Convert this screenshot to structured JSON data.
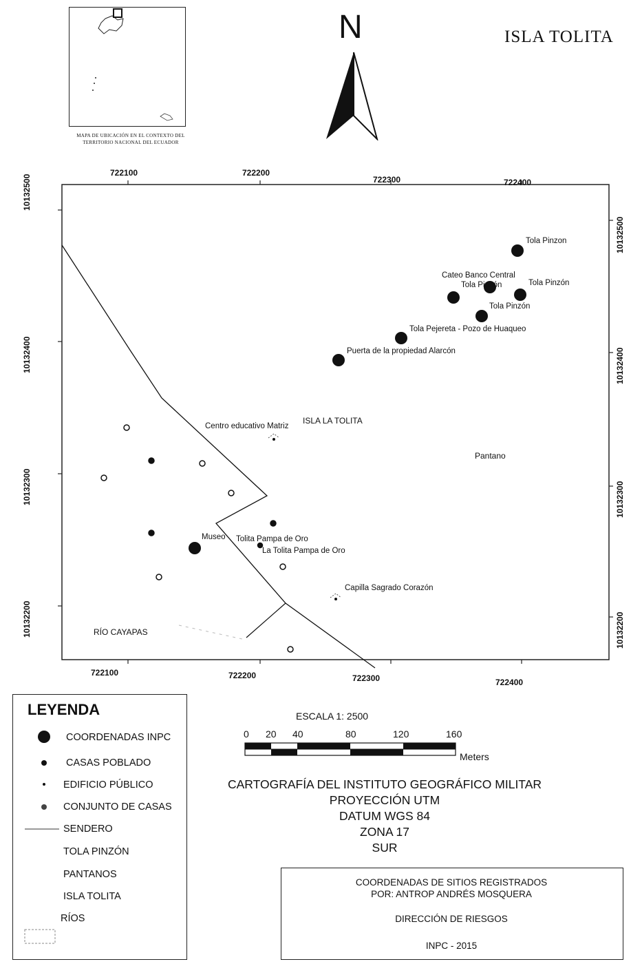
{
  "title": "ISLA TOLITA",
  "north_label": "N",
  "inset": {
    "caption_line1": "MAPA DE UBICACIÓN EN EL CONTEXTO DEL",
    "caption_line2": "TERRITORIO NACIONAL DEL ECUADOR"
  },
  "grid": {
    "easting_labels": [
      "722100",
      "722200",
      "722300",
      "722400"
    ],
    "northing_labels_left": [
      "10132500",
      "10132400",
      "10132300",
      "10132200"
    ],
    "northing_labels_right": [
      "10132500",
      "10132400",
      "10132300",
      "10132200"
    ]
  },
  "map_labels": {
    "isla": "ISLA LA TOLITA",
    "pantano": "Pantano",
    "rio": "RÍO CAYAPAS",
    "centro": "Centro educativo Matriz",
    "capilla": "Capilla Sagrado Corazón",
    "museo": "Museo",
    "tolita_pampa": "Tolita Pampa de Oro",
    "la_tolita_pampa": "La Tolita Pampa de Oro"
  },
  "sites": [
    {
      "name": "Tola Pinzon"
    },
    {
      "name": "Cateo Banco Central"
    },
    {
      "name": "Tola Pinzón"
    },
    {
      "name": "Tola Pinzón"
    },
    {
      "name": "Tola Pinzón"
    },
    {
      "name": "Tola Pejereta - Pozo de Huaqueo"
    },
    {
      "name": "Puerta de la propiedad Alarcón"
    }
  ],
  "legend": {
    "title": "LEYENDA",
    "items": [
      {
        "label": "COORDENADAS INPC",
        "symbol": "large-dot"
      },
      {
        "label": "CASAS POBLADO",
        "symbol": "small-dot"
      },
      {
        "label": "EDIFICIO PÚBLICO",
        "symbol": "tiny-dot"
      },
      {
        "label": "CONJUNTO DE CASAS",
        "symbol": "ring-dot"
      },
      {
        "label": "SENDERO",
        "symbol": "line"
      },
      {
        "label": "TOLA PINZÓN",
        "symbol": "none"
      },
      {
        "label": "PANTANOS",
        "symbol": "none"
      },
      {
        "label": "ISLA TOLITA",
        "symbol": "none"
      },
      {
        "label": "RÍOS",
        "symbol": "box"
      }
    ]
  },
  "scale": {
    "title": "ESCALA  1: 2500",
    "ticks": [
      "0",
      "20",
      "40",
      "80",
      "120",
      "160"
    ],
    "unit": "Meters"
  },
  "cartography": {
    "line1": "CARTOGRAFÍA DEL INSTITUTO GEOGRÁFICO MILITAR",
    "line2": "PROYECCIÓN UTM",
    "line3": "DATUM WGS 84",
    "line4": "ZONA 17",
    "line5": "SUR"
  },
  "credits": {
    "line1": "COORDENADAS DE SITIOS REGISTRADOS",
    "line2": "POR: ANTROP ANDRÉS MOSQUERA",
    "line3": "DIRECCIÓN DE RIESGOS",
    "line4": "INPC - 2015"
  }
}
